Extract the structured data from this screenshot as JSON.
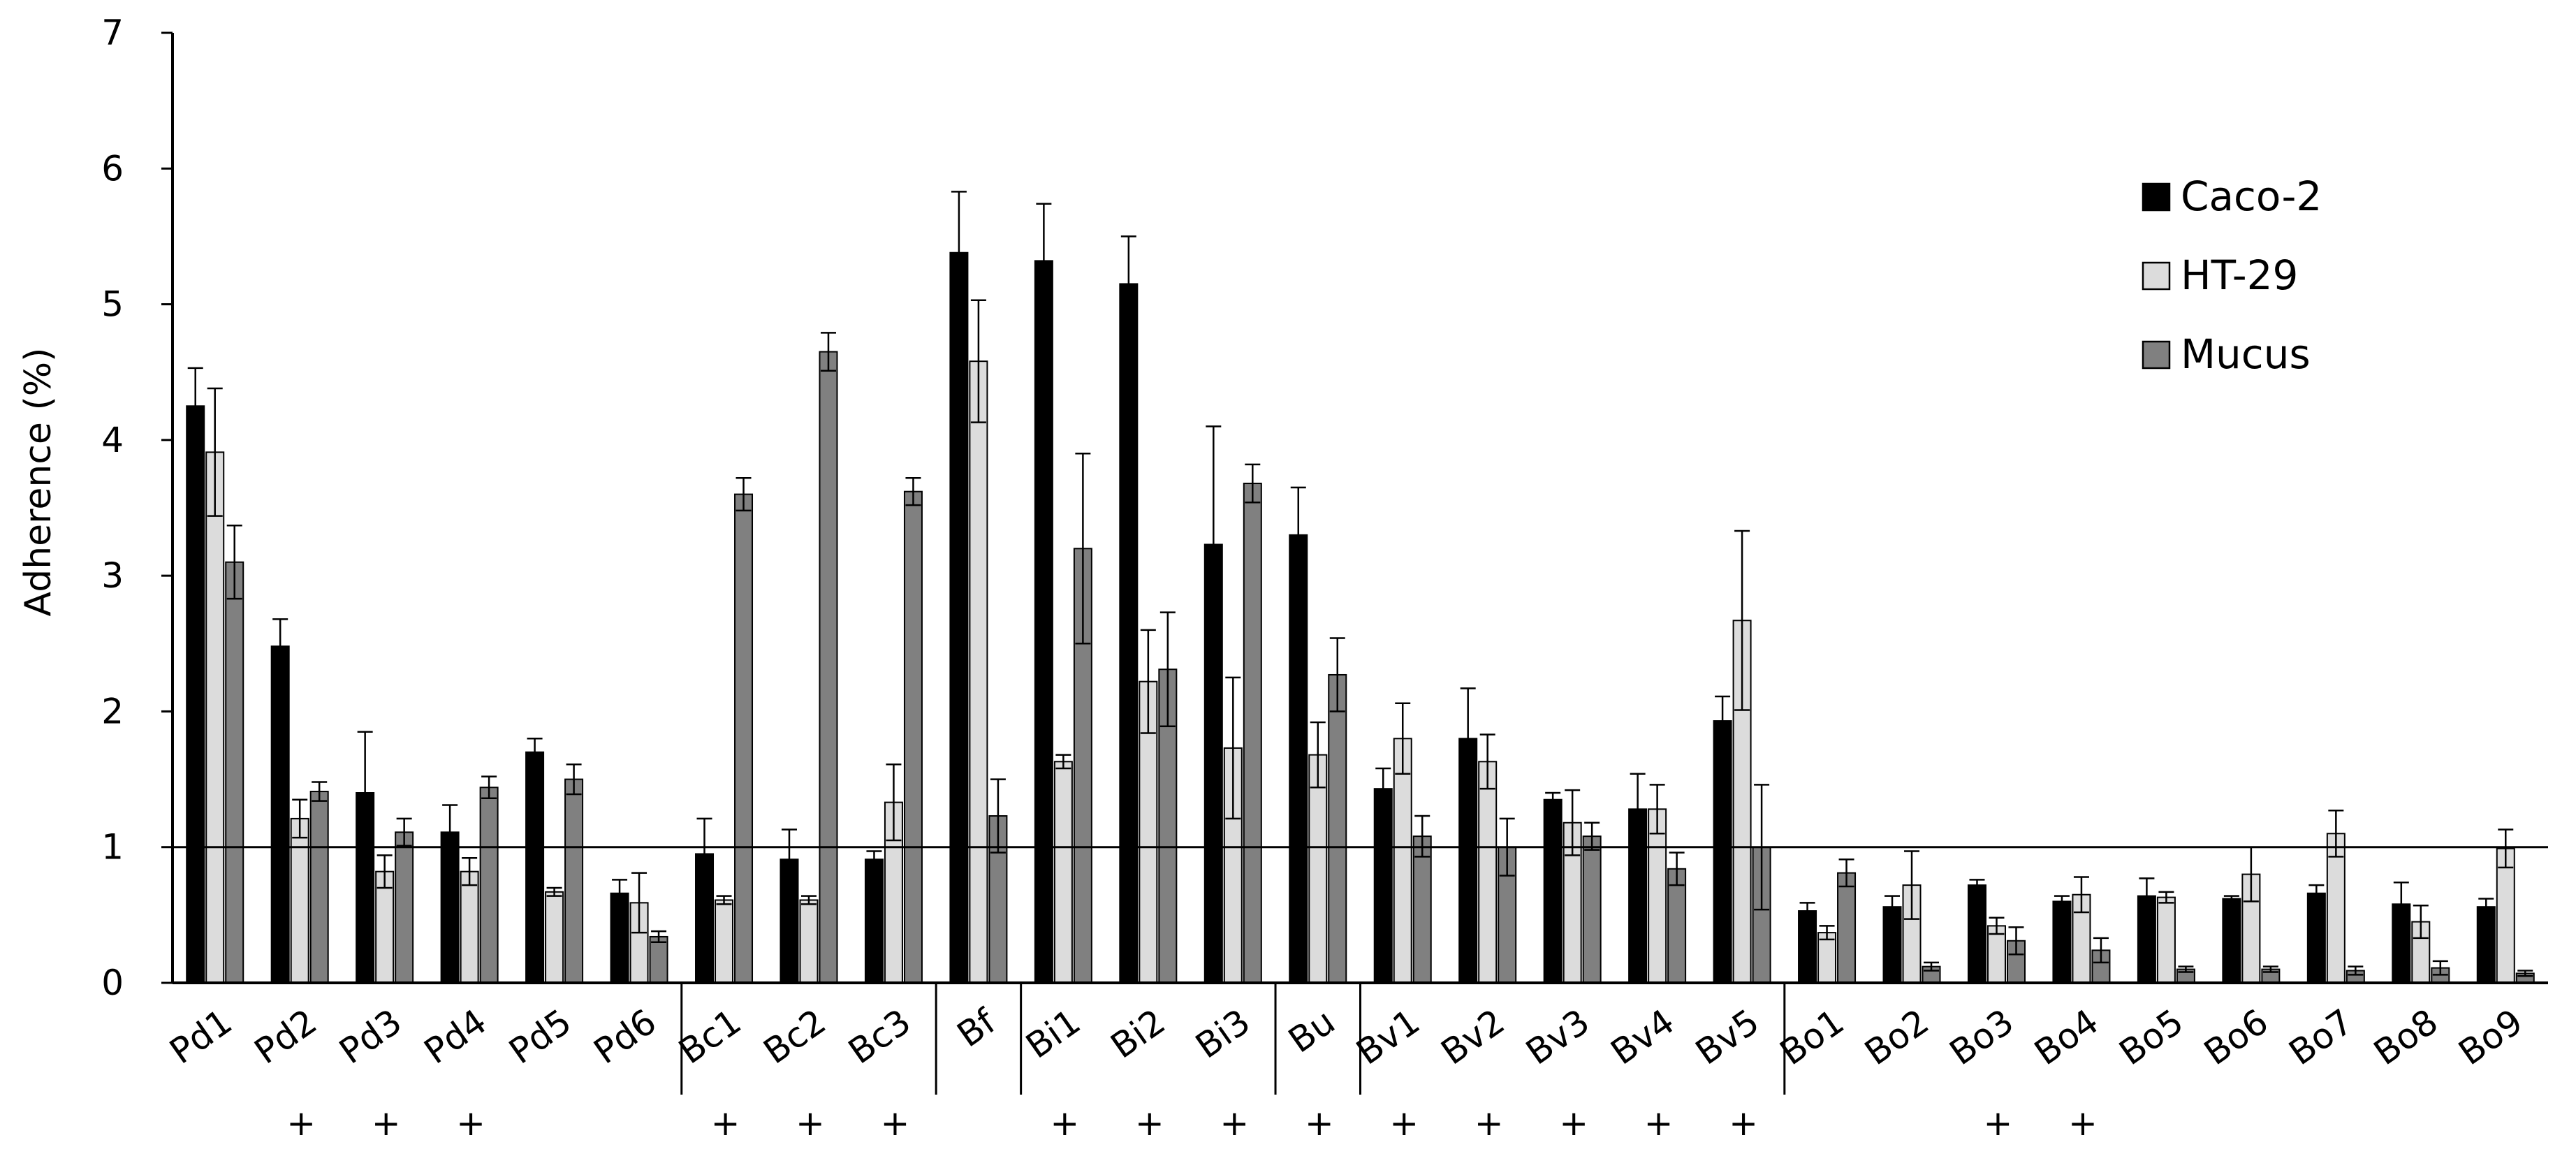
{
  "chart_data": {
    "type": "bar",
    "ylabel": "Adherence (%)",
    "ylim": [
      0,
      7
    ],
    "yticks": [
      "0",
      "1",
      "2",
      "3",
      "4",
      "5",
      "6",
      "7"
    ],
    "reference_line_y": 1,
    "legend_position": "top-right",
    "categories": [
      "Pd1",
      "Pd2",
      "Pd3",
      "Pd4",
      "Pd5",
      "Pd6",
      "Bc1",
      "Bc2",
      "Bc3",
      "Bf",
      "Bi1",
      "Bi2",
      "Bi3",
      "Bu",
      "Bv1",
      "Bv2",
      "Bv3",
      "Bv4",
      "Bv5",
      "Bo1",
      "Bo2",
      "Bo3",
      "Bo4",
      "Bo5",
      "Bo6",
      "Bo7",
      "Bo8",
      "Bo9"
    ],
    "markers": [
      "",
      "+",
      "+",
      "+",
      "",
      "",
      "+",
      "+",
      "+",
      "",
      "+",
      "+",
      "+",
      "+",
      "+",
      "+",
      "+",
      "+",
      "+",
      "",
      "",
      "+",
      "+",
      "",
      "",
      "",
      "",
      ""
    ],
    "marker_symbol": "+",
    "group_breaks_after": [
      5,
      8,
      9,
      12,
      13,
      18
    ],
    "series": [
      {
        "name": "Caco-2",
        "color": "#000000",
        "values": [
          4.25,
          2.48,
          1.4,
          1.11,
          1.7,
          0.66,
          0.95,
          0.91,
          0.91,
          5.38,
          5.32,
          5.15,
          3.23,
          3.3,
          1.43,
          1.8,
          1.35,
          1.28,
          1.93,
          0.53,
          0.56,
          0.72,
          0.6,
          0.64,
          0.62,
          0.66,
          0.58,
          0.56
        ],
        "errors": [
          0.28,
          0.2,
          0.45,
          0.2,
          0.1,
          0.1,
          0.26,
          0.22,
          0.06,
          0.45,
          0.42,
          0.35,
          0.87,
          0.35,
          0.15,
          0.37,
          0.05,
          0.26,
          0.18,
          0.06,
          0.08,
          0.04,
          0.04,
          0.13,
          0.02,
          0.06,
          0.16,
          0.06
        ]
      },
      {
        "name": "HT-29",
        "color": "#dcdcdc",
        "values": [
          3.91,
          1.21,
          0.82,
          0.82,
          0.67,
          0.59,
          0.61,
          0.61,
          1.33,
          4.58,
          1.63,
          2.22,
          1.73,
          1.68,
          1.8,
          1.63,
          1.18,
          1.28,
          2.67,
          0.37,
          0.72,
          0.42,
          0.65,
          0.63,
          0.8,
          1.1,
          0.45,
          0.99
        ],
        "errors": [
          0.47,
          0.14,
          0.12,
          0.1,
          0.03,
          0.22,
          0.03,
          0.03,
          0.28,
          0.45,
          0.05,
          0.38,
          0.52,
          0.24,
          0.26,
          0.2,
          0.24,
          0.18,
          0.66,
          0.05,
          0.25,
          0.06,
          0.13,
          0.04,
          0.2,
          0.17,
          0.12,
          0.14
        ]
      },
      {
        "name": "Mucus",
        "color": "#808080",
        "values": [
          3.1,
          1.41,
          1.11,
          1.44,
          1.5,
          0.34,
          3.6,
          4.65,
          3.62,
          1.23,
          3.2,
          2.31,
          3.68,
          2.27,
          1.08,
          1.0,
          1.08,
          0.84,
          1.0,
          0.81,
          0.12,
          0.31,
          0.24,
          0.1,
          0.1,
          0.09,
          0.11,
          0.07
        ],
        "errors": [
          0.27,
          0.07,
          0.1,
          0.08,
          0.11,
          0.04,
          0.12,
          0.14,
          0.1,
          0.27,
          0.7,
          0.42,
          0.14,
          0.27,
          0.15,
          0.21,
          0.1,
          0.12,
          0.46,
          0.1,
          0.03,
          0.1,
          0.09,
          0.02,
          0.02,
          0.03,
          0.05,
          0.02
        ]
      }
    ]
  }
}
